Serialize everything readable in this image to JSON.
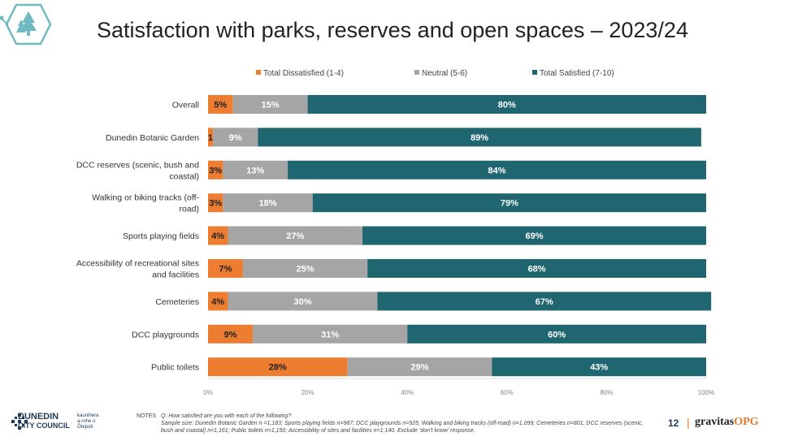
{
  "page": {
    "title": "Satisfaction with parks, reserves and open spaces – 2023/24",
    "page_number": "12",
    "notes_label": "NOTES",
    "notes_q": "Q: How satisfied are you with each of the following?",
    "notes_sample": "Sample size: Dunedin Botanic Garden n =1,183; Sports playing fields n=987; DCC playgrounds n=925; Walking and biking tracks (off-road) n=1,099; Cemeteries n=801; DCC reserves (scenic, bush and coastal) n=1,161; Public toilets n=1,150;  Accessibility of sites and facilities n=1,140. Exclude ‘don’t know’ response.",
    "dcc_logo_line1": "DUNEDIN",
    "dcc_logo_line2": "CITY COUNCIL",
    "dcc_maori": "kaunihera\na-rohe o\nŌtepoti",
    "brand_gravitas": "gravitas",
    "brand_opg": "OPG"
  },
  "colors": {
    "dissatisfied": "#ed7d31",
    "neutral": "#a5a5a5",
    "satisfied": "#1f6670",
    "accent_teal": "#6fb9c0"
  },
  "chart_data": {
    "type": "bar",
    "orientation": "horizontal",
    "stacked": true,
    "categories": [
      "Overall",
      "Dunedin Botanic Garden",
      "DCC reserves (scenic, bush and coastal)",
      "Walking or biking tracks (off-road)",
      "Sports playing fields",
      "Accessibility of recreational sites and facilities",
      "Cemeteries",
      "DCC playgrounds",
      "Public toilets"
    ],
    "category_lines": [
      [
        "Overall"
      ],
      [
        "Dunedin Botanic Garden"
      ],
      [
        "DCC reserves (scenic, bush and",
        "coastal)"
      ],
      [
        "Walking or biking tracks (off-",
        "road)"
      ],
      [
        "Sports playing fields"
      ],
      [
        "Accessibility of recreational sites",
        "and facilities"
      ],
      [
        "Cemeteries"
      ],
      [
        "DCC playgrounds"
      ],
      [
        "Public toilets"
      ]
    ],
    "series": [
      {
        "name": "Total Dissatisfied (1-4)",
        "values": [
          5,
          1,
          3,
          3,
          4,
          7,
          4,
          9,
          28
        ]
      },
      {
        "name": "Neutral (5-6)",
        "values": [
          15,
          9,
          13,
          18,
          27,
          25,
          30,
          31,
          29
        ]
      },
      {
        "name": "Total Satisfied (7-10)",
        "values": [
          80,
          89,
          84,
          79,
          69,
          68,
          67,
          60,
          43
        ]
      }
    ],
    "xlim": [
      0,
      100
    ],
    "xticks": [
      "0%",
      "20%",
      "40%",
      "60%",
      "80%",
      "100%"
    ],
    "legend_position": "top",
    "grid": false
  }
}
